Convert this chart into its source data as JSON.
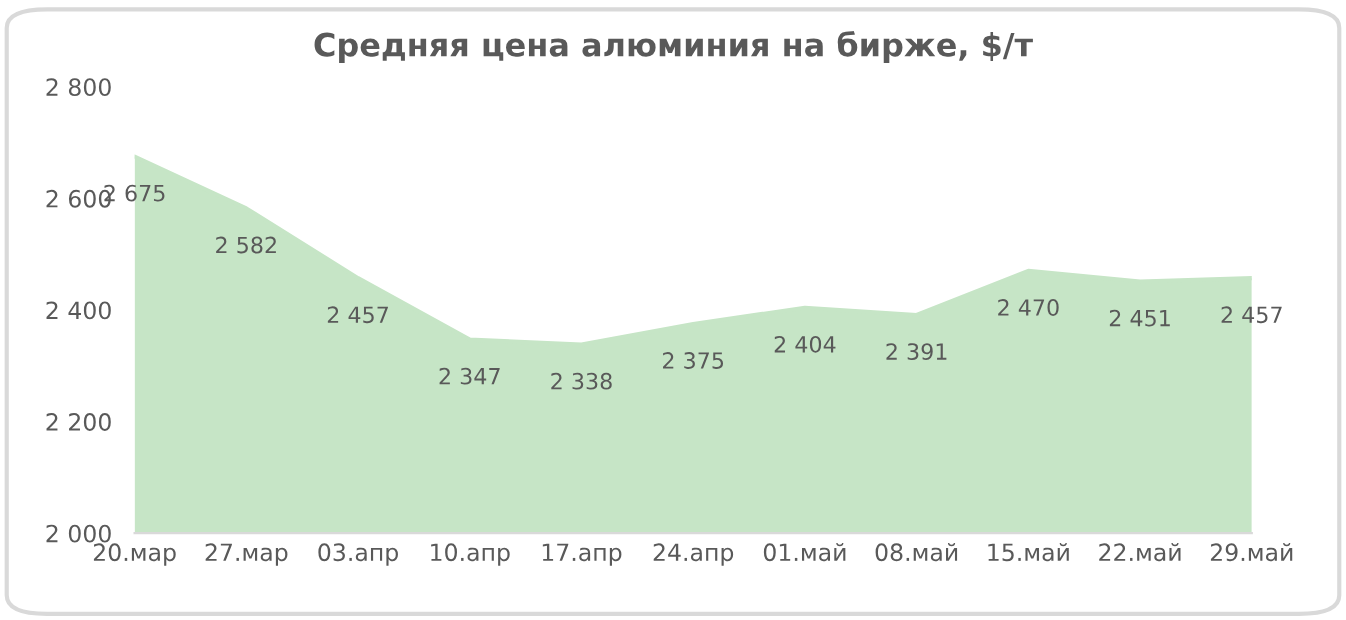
{
  "chart_data": {
    "type": "area",
    "title": "Средняя цена алюминия на бирже, $/т",
    "categories": [
      "20.мар",
      "27.мар",
      "03.апр",
      "10.апр",
      "17.апр",
      "24.апр",
      "01.май",
      "08.май",
      "15.май",
      "22.май",
      "29.май"
    ],
    "series": [
      {
        "color": "#c6e5c6",
        "values": [
          2675,
          2582,
          2457,
          2347,
          2338,
          2375,
          2404,
          2391,
          2470,
          2451,
          2457
        ],
        "value_labels": [
          "2 675",
          "2 582",
          "2 457",
          "2 347",
          "2 338",
          "2 375",
          "2 404",
          "2 391",
          "2 470",
          "2 451",
          "2 457"
        ]
      }
    ],
    "ylim": [
      2000,
      2800
    ],
    "yticks": [
      {
        "value": 2000,
        "label": "2 000"
      },
      {
        "value": 2200,
        "label": "2 200"
      },
      {
        "value": 2400,
        "label": "2 400"
      },
      {
        "value": 2600,
        "label": "2 600"
      },
      {
        "value": 2800,
        "label": "2 800"
      }
    ],
    "grid": false,
    "legend": false
  }
}
